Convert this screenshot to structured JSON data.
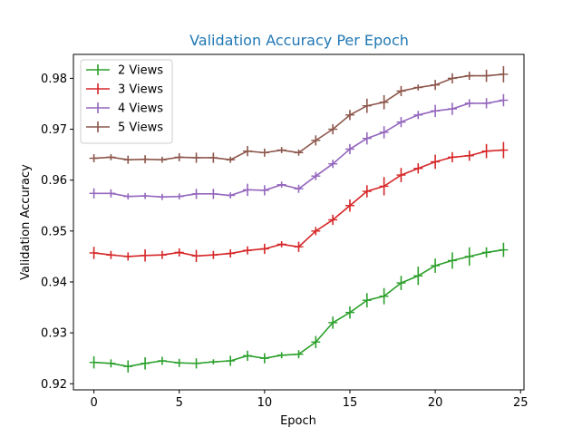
{
  "chart_data": {
    "type": "line",
    "title": "Validation Accuracy Per Epoch",
    "title_color": "#1f77b4",
    "xlabel": "Epoch",
    "ylabel": "Validation Accuracy",
    "xlim": [
      -1.2,
      25.2
    ],
    "ylim": [
      0.9188,
      0.9847
    ],
    "xticks": [
      0,
      5,
      10,
      15,
      20,
      25
    ],
    "xtick_labels": [
      "0",
      "5",
      "10",
      "15",
      "20",
      "25"
    ],
    "yticks": [
      0.92,
      0.93,
      0.94,
      0.95,
      0.96,
      0.97,
      0.98
    ],
    "ytick_labels": [
      "0.92",
      "0.93",
      "0.94",
      "0.95",
      "0.96",
      "0.97",
      "0.98"
    ],
    "grid": false,
    "legend_position": "top-left",
    "x": [
      0,
      1,
      2,
      3,
      4,
      5,
      6,
      7,
      8,
      9,
      10,
      11,
      12,
      13,
      14,
      15,
      16,
      17,
      18,
      19,
      20,
      21,
      22,
      23,
      24
    ],
    "series": [
      {
        "name": "2 Views",
        "color": "#2ca02c",
        "values": [
          0.9242,
          0.924,
          0.9234,
          0.924,
          0.9245,
          0.9241,
          0.924,
          0.9243,
          0.9245,
          0.9255,
          0.925,
          0.9256,
          0.9258,
          0.9282,
          0.932,
          0.934,
          0.9364,
          0.9372,
          0.9398,
          0.9412,
          0.9432,
          0.9442,
          0.945,
          0.9458,
          0.9463
        ],
        "errors": [
          0.0012,
          0.0008,
          0.0012,
          0.0012,
          0.0008,
          0.0008,
          0.001,
          0.0005,
          0.001,
          0.001,
          0.001,
          0.0006,
          0.0008,
          0.0012,
          0.0012,
          0.0012,
          0.0014,
          0.0016,
          0.0014,
          0.0018,
          0.0014,
          0.0016,
          0.0018,
          0.001,
          0.0014
        ]
      },
      {
        "name": "3 Views",
        "color": "#d62728",
        "values": [
          0.9457,
          0.9453,
          0.945,
          0.9452,
          0.9453,
          0.9458,
          0.9451,
          0.9453,
          0.9456,
          0.9462,
          0.9465,
          0.9474,
          0.9469,
          0.95,
          0.9522,
          0.955,
          0.9578,
          0.9588,
          0.961,
          0.9623,
          0.9636,
          0.9645,
          0.9648,
          0.9657,
          0.9659
        ],
        "errors": [
          0.0012,
          0.0008,
          0.0008,
          0.0012,
          0.0008,
          0.0008,
          0.0012,
          0.0008,
          0.0008,
          0.0008,
          0.001,
          0.0006,
          0.001,
          0.0008,
          0.001,
          0.0012,
          0.0012,
          0.0018,
          0.0014,
          0.001,
          0.0014,
          0.001,
          0.001,
          0.0014,
          0.0016
        ]
      },
      {
        "name": "4 Views",
        "color": "#9467bd",
        "values": [
          0.9574,
          0.9574,
          0.9568,
          0.9569,
          0.9567,
          0.9568,
          0.9573,
          0.9573,
          0.957,
          0.9581,
          0.958,
          0.9591,
          0.9583,
          0.9608,
          0.9632,
          0.9661,
          0.9682,
          0.9694,
          0.9714,
          0.9728,
          0.9736,
          0.974,
          0.9751,
          0.9751,
          0.9757
        ],
        "errors": [
          0.001,
          0.0008,
          0.0006,
          0.0006,
          0.0006,
          0.0006,
          0.001,
          0.001,
          0.0006,
          0.0012,
          0.001,
          0.0006,
          0.0008,
          0.0008,
          0.0008,
          0.001,
          0.0012,
          0.0012,
          0.001,
          0.0008,
          0.0012,
          0.0012,
          0.0008,
          0.001,
          0.0012
        ]
      },
      {
        "name": "5 Views",
        "color": "#8c564b",
        "values": [
          0.9643,
          0.9645,
          0.964,
          0.9641,
          0.964,
          0.9645,
          0.9644,
          0.9644,
          0.964,
          0.9657,
          0.9654,
          0.9659,
          0.9654,
          0.9678,
          0.97,
          0.9728,
          0.9746,
          0.9753,
          0.9775,
          0.9782,
          0.9787,
          0.98,
          0.9805,
          0.9805,
          0.9808
        ],
        "errors": [
          0.0008,
          0.0006,
          0.0008,
          0.0008,
          0.0006,
          0.0008,
          0.001,
          0.001,
          0.0006,
          0.001,
          0.0008,
          0.0006,
          0.0006,
          0.001,
          0.001,
          0.001,
          0.0014,
          0.0014,
          0.001,
          0.0006,
          0.001,
          0.001,
          0.0008,
          0.0012,
          0.0016
        ]
      }
    ]
  }
}
